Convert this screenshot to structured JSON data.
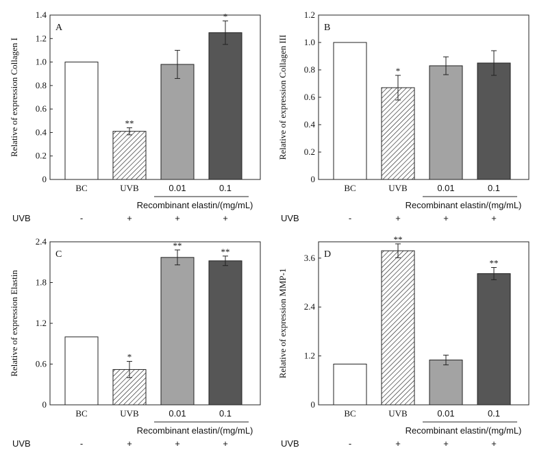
{
  "treatment_row_label": "UVB",
  "group_label": "Recombinant elastin/(mg/mL)",
  "uvb_marks": [
    "-",
    "+",
    "+",
    "+"
  ],
  "chart_data": [
    {
      "type": "bar",
      "panel": "A",
      "categories": [
        "BC",
        "UVB",
        "0.01",
        "0.1"
      ],
      "values": [
        1.0,
        0.41,
        0.98,
        1.25
      ],
      "errors": [
        0,
        0.03,
        0.12,
        0.1
      ],
      "significance": [
        "",
        "**",
        "",
        "*"
      ],
      "ylabel": "Relative of expression Collagen I",
      "ylim": [
        0,
        1.4
      ],
      "yticks": [
        0,
        0.2,
        0.4,
        0.6,
        0.8,
        1.0,
        1.2,
        1.4
      ],
      "ytick_labels": [
        "0",
        "0.2",
        "0.4",
        "0.6",
        "0.8",
        "1.0",
        "1.2",
        "1.4"
      ]
    },
    {
      "type": "bar",
      "panel": "B",
      "categories": [
        "BC",
        "UVB",
        "0.01",
        "0.1"
      ],
      "values": [
        1.0,
        0.67,
        0.83,
        0.85
      ],
      "errors": [
        0,
        0.09,
        0.065,
        0.09
      ],
      "significance": [
        "",
        "*",
        "",
        ""
      ],
      "ylabel": "Relative of expression Collagen III",
      "ylim": [
        0,
        1.2
      ],
      "yticks": [
        0,
        0.2,
        0.4,
        0.6,
        0.8,
        1.0,
        1.2
      ],
      "ytick_labels": [
        "0",
        "0.2",
        "0.4",
        "0.6",
        "0.8",
        "1.0",
        "1.2"
      ]
    },
    {
      "type": "bar",
      "panel": "C",
      "categories": [
        "BC",
        "UVB",
        "0.01",
        "0.1"
      ],
      "values": [
        1.0,
        0.52,
        2.17,
        2.12
      ],
      "errors": [
        0,
        0.12,
        0.11,
        0.07
      ],
      "significance": [
        "",
        "*",
        "**",
        "**"
      ],
      "ylabel": "Relative of expression Elastin",
      "ylim": [
        0,
        2.4
      ],
      "yticks": [
        0,
        0.6,
        1.2,
        1.8,
        2.4
      ],
      "ytick_labels": [
        "0",
        "0.6",
        "1.2",
        "1.8",
        "2.4"
      ]
    },
    {
      "type": "bar",
      "panel": "D",
      "categories": [
        "BC",
        "UVB",
        "0.01",
        "0.1"
      ],
      "values": [
        1.0,
        3.78,
        1.1,
        3.22
      ],
      "errors": [
        0,
        0.17,
        0.12,
        0.15
      ],
      "significance": [
        "",
        "**",
        "",
        "**"
      ],
      "ylabel": "Relative of expression MMP-1",
      "ylim": [
        0,
        4.0
      ],
      "yticks": [
        0,
        1.2,
        2.4,
        3.6
      ],
      "ytick_labels": [
        "0",
        "1.2",
        "2.4",
        "3.6"
      ]
    }
  ],
  "bar_styles": {
    "fills": [
      "#ffffff",
      "hatch",
      "#a3a3a3",
      "#565656"
    ],
    "stroke": "#222222"
  }
}
